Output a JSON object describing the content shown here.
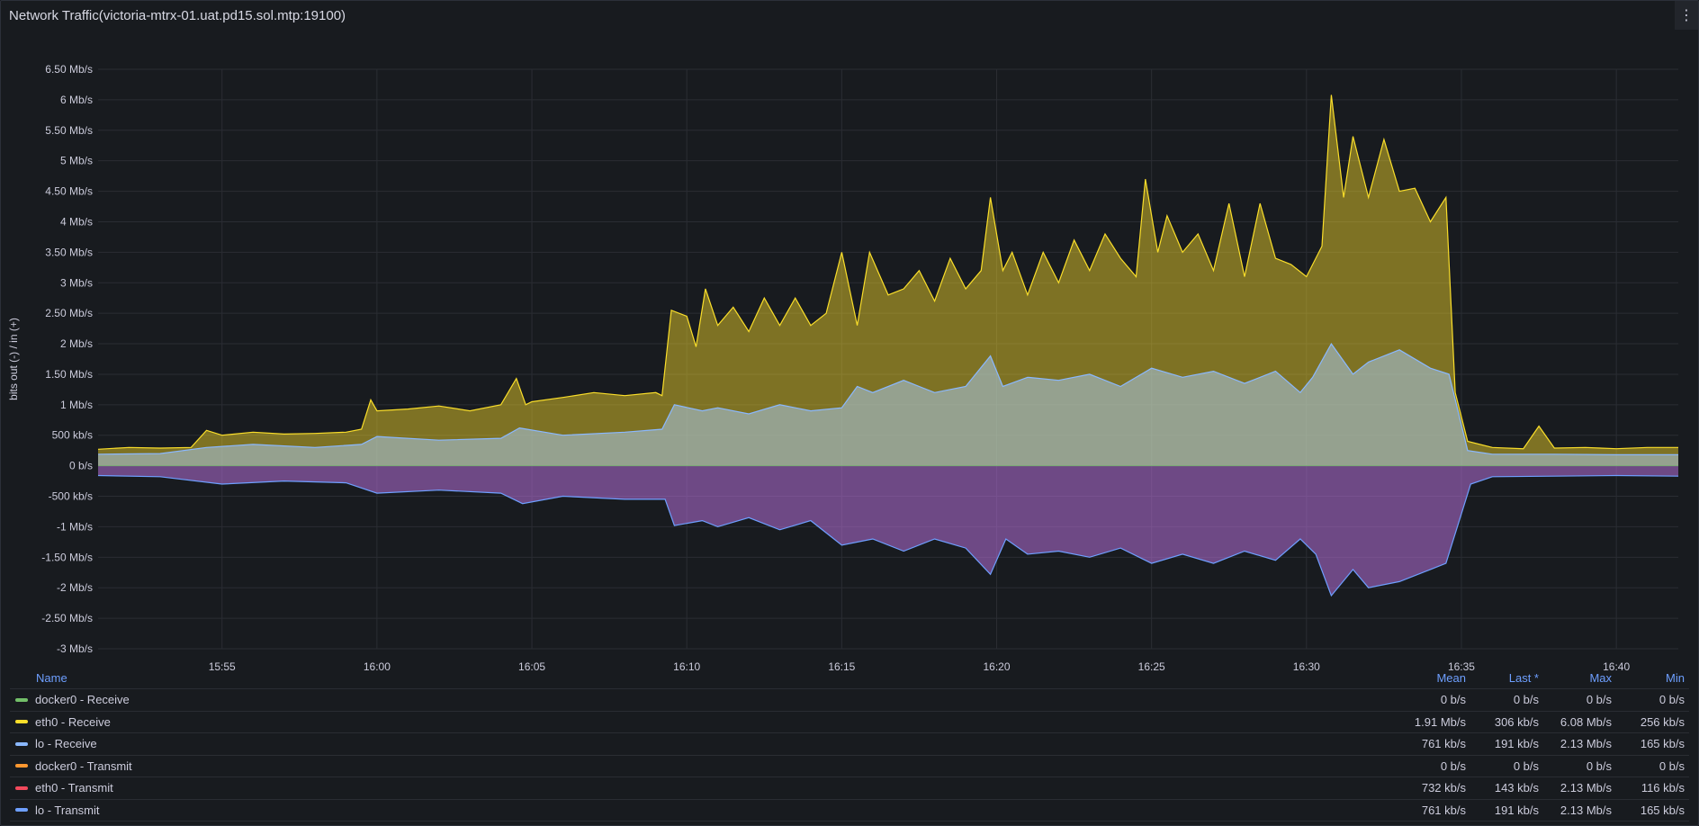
{
  "panel": {
    "title": "Network Traffic(victoria-mtrx-01.uat.pd15.sol.mtp:19100)",
    "menu_icon": "kebab-menu-icon"
  },
  "chart_data": {
    "type": "area",
    "ylabel": "bits out (-) / in (+)",
    "xlabel": "",
    "y_unit": "Mb/s",
    "ylim": [
      -3,
      6.5
    ],
    "yticks": [
      "6.50 Mb/s",
      "6 Mb/s",
      "5.50 Mb/s",
      "5 Mb/s",
      "4.50 Mb/s",
      "4 Mb/s",
      "3.50 Mb/s",
      "3 Mb/s",
      "2.50 Mb/s",
      "2 Mb/s",
      "1.50 Mb/s",
      "1 Mb/s",
      "500 kb/s",
      "0 b/s",
      "-500 kb/s",
      "-1 Mb/s",
      "-1.50 Mb/s",
      "-2 Mb/s",
      "-2.50 Mb/s",
      "-3 Mb/s"
    ],
    "ytick_values": [
      6.5,
      6,
      5.5,
      5,
      4.5,
      4,
      3.5,
      3,
      2.5,
      2,
      1.5,
      1,
      0.5,
      0,
      -0.5,
      -1,
      -1.5,
      -2,
      -2.5,
      -3
    ],
    "xticks": [
      "15:55",
      "16:00",
      "16:05",
      "16:10",
      "16:15",
      "16:20",
      "16:25",
      "16:30",
      "16:35",
      "16:40"
    ],
    "xtick_minutes": [
      55,
      60,
      65,
      70,
      75,
      80,
      85,
      90,
      95,
      100
    ],
    "x_range_minutes": [
      51,
      102
    ],
    "grid": true,
    "legend_position": "bottom",
    "series": [
      {
        "name": "eth0 - Receive",
        "color": "#fade2a",
        "points": [
          [
            51,
            0.27
          ],
          [
            52,
            0.3
          ],
          [
            53,
            0.29
          ],
          [
            54,
            0.3
          ],
          [
            54.5,
            0.58
          ],
          [
            55,
            0.5
          ],
          [
            56,
            0.55
          ],
          [
            57,
            0.52
          ],
          [
            58,
            0.53
          ],
          [
            59,
            0.55
          ],
          [
            59.5,
            0.6
          ],
          [
            59.8,
            1.08
          ],
          [
            60,
            0.9
          ],
          [
            61,
            0.93
          ],
          [
            62,
            0.98
          ],
          [
            63,
            0.9
          ],
          [
            64,
            1.0
          ],
          [
            64.5,
            1.43
          ],
          [
            64.8,
            1.0
          ],
          [
            65,
            1.05
          ],
          [
            66,
            1.12
          ],
          [
            67,
            1.2
          ],
          [
            68,
            1.15
          ],
          [
            69,
            1.2
          ],
          [
            69.2,
            1.15
          ],
          [
            69.5,
            2.55
          ],
          [
            70,
            2.45
          ],
          [
            70.3,
            1.95
          ],
          [
            70.6,
            2.9
          ],
          [
            71,
            2.3
          ],
          [
            71.5,
            2.6
          ],
          [
            72,
            2.2
          ],
          [
            72.5,
            2.75
          ],
          [
            73,
            2.3
          ],
          [
            73.5,
            2.75
          ],
          [
            74,
            2.3
          ],
          [
            74.5,
            2.5
          ],
          [
            75,
            3.5
          ],
          [
            75.5,
            2.3
          ],
          [
            75.9,
            3.5
          ],
          [
            76.5,
            2.8
          ],
          [
            77,
            2.9
          ],
          [
            77.5,
            3.2
          ],
          [
            78,
            2.7
          ],
          [
            78.5,
            3.4
          ],
          [
            79,
            2.9
          ],
          [
            79.5,
            3.2
          ],
          [
            79.8,
            4.4
          ],
          [
            80.2,
            3.2
          ],
          [
            80.5,
            3.5
          ],
          [
            81,
            2.8
          ],
          [
            81.5,
            3.5
          ],
          [
            82,
            3.0
          ],
          [
            82.5,
            3.7
          ],
          [
            83,
            3.2
          ],
          [
            83.5,
            3.8
          ],
          [
            84,
            3.4
          ],
          [
            84.5,
            3.1
          ],
          [
            84.8,
            4.7
          ],
          [
            85.2,
            3.5
          ],
          [
            85.5,
            4.1
          ],
          [
            86,
            3.5
          ],
          [
            86.5,
            3.8
          ],
          [
            87,
            3.2
          ],
          [
            87.5,
            4.3
          ],
          [
            88,
            3.1
          ],
          [
            88.5,
            4.3
          ],
          [
            89,
            3.4
          ],
          [
            89.5,
            3.3
          ],
          [
            90,
            3.1
          ],
          [
            90.5,
            3.6
          ],
          [
            90.8,
            6.08
          ],
          [
            91.2,
            4.4
          ],
          [
            91.5,
            5.4
          ],
          [
            92,
            4.4
          ],
          [
            92.5,
            5.35
          ],
          [
            93,
            4.5
          ],
          [
            93.5,
            4.55
          ],
          [
            94,
            4.0
          ],
          [
            94.5,
            4.4
          ],
          [
            94.8,
            1.2
          ],
          [
            95.2,
            0.4
          ],
          [
            96,
            0.3
          ],
          [
            97,
            0.28
          ],
          [
            97.5,
            0.65
          ],
          [
            98,
            0.29
          ],
          [
            99,
            0.3
          ],
          [
            100,
            0.28
          ],
          [
            101,
            0.3
          ],
          [
            102,
            0.3
          ]
        ]
      },
      {
        "name": "lo - Receive",
        "color": "#8ab8ff",
        "points": [
          [
            51,
            0.19
          ],
          [
            53,
            0.2
          ],
          [
            54.5,
            0.3
          ],
          [
            56,
            0.35
          ],
          [
            58,
            0.3
          ],
          [
            59.5,
            0.35
          ],
          [
            60,
            0.48
          ],
          [
            62,
            0.42
          ],
          [
            64,
            0.45
          ],
          [
            64.6,
            0.62
          ],
          [
            66,
            0.5
          ],
          [
            68,
            0.55
          ],
          [
            69.2,
            0.6
          ],
          [
            69.6,
            1.0
          ],
          [
            70.5,
            0.9
          ],
          [
            71,
            0.95
          ],
          [
            72,
            0.85
          ],
          [
            73,
            1.0
          ],
          [
            74,
            0.9
          ],
          [
            75,
            0.95
          ],
          [
            75.5,
            1.3
          ],
          [
            76,
            1.2
          ],
          [
            77,
            1.4
          ],
          [
            78,
            1.2
          ],
          [
            79,
            1.3
          ],
          [
            79.8,
            1.8
          ],
          [
            80.2,
            1.3
          ],
          [
            81,
            1.45
          ],
          [
            82,
            1.4
          ],
          [
            83,
            1.5
          ],
          [
            84,
            1.3
          ],
          [
            85,
            1.6
          ],
          [
            86,
            1.45
          ],
          [
            87,
            1.55
          ],
          [
            88,
            1.35
          ],
          [
            89,
            1.55
          ],
          [
            89.8,
            1.2
          ],
          [
            90.2,
            1.45
          ],
          [
            90.8,
            2.0
          ],
          [
            91.5,
            1.5
          ],
          [
            92,
            1.7
          ],
          [
            93,
            1.9
          ],
          [
            94,
            1.6
          ],
          [
            94.6,
            1.5
          ],
          [
            95.2,
            0.25
          ],
          [
            96,
            0.19
          ],
          [
            98,
            0.19
          ],
          [
            100,
            0.18
          ],
          [
            102,
            0.18
          ]
        ]
      },
      {
        "name": "lo - Transmit",
        "color": "#6e9fff",
        "points": [
          [
            51,
            -0.16
          ],
          [
            53,
            -0.18
          ],
          [
            55,
            -0.3
          ],
          [
            57,
            -0.25
          ],
          [
            59,
            -0.28
          ],
          [
            60,
            -0.45
          ],
          [
            62,
            -0.4
          ],
          [
            64,
            -0.45
          ],
          [
            64.7,
            -0.62
          ],
          [
            66,
            -0.5
          ],
          [
            68,
            -0.55
          ],
          [
            69.3,
            -0.55
          ],
          [
            69.6,
            -0.98
          ],
          [
            70.5,
            -0.9
          ],
          [
            71,
            -1.0
          ],
          [
            72,
            -0.85
          ],
          [
            73,
            -1.05
          ],
          [
            74,
            -0.9
          ],
          [
            75,
            -1.3
          ],
          [
            76,
            -1.2
          ],
          [
            77,
            -1.4
          ],
          [
            78,
            -1.2
          ],
          [
            79,
            -1.35
          ],
          [
            79.8,
            -1.78
          ],
          [
            80.3,
            -1.2
          ],
          [
            81,
            -1.45
          ],
          [
            82,
            -1.4
          ],
          [
            83,
            -1.5
          ],
          [
            84,
            -1.35
          ],
          [
            85,
            -1.6
          ],
          [
            86,
            -1.45
          ],
          [
            87,
            -1.6
          ],
          [
            88,
            -1.4
          ],
          [
            89,
            -1.55
          ],
          [
            89.8,
            -1.2
          ],
          [
            90.3,
            -1.45
          ],
          [
            90.8,
            -2.13
          ],
          [
            91.5,
            -1.7
          ],
          [
            92,
            -2.0
          ],
          [
            93,
            -1.9
          ],
          [
            94,
            -1.7
          ],
          [
            94.5,
            -1.6
          ],
          [
            95.3,
            -0.3
          ],
          [
            96,
            -0.18
          ],
          [
            98,
            -0.17
          ],
          [
            100,
            -0.16
          ],
          [
            102,
            -0.17
          ]
        ]
      }
    ]
  },
  "legend": {
    "headers": {
      "name": "Name",
      "mean": "Mean",
      "last": "Last *",
      "max": "Max",
      "min": "Min"
    },
    "rows": [
      {
        "name": "docker0 - Receive",
        "color": "#73bf69",
        "mean": "0 b/s",
        "last": "0 b/s",
        "max": "0 b/s",
        "min": "0 b/s"
      },
      {
        "name": "eth0 - Receive",
        "color": "#fade2a",
        "mean": "1.91 Mb/s",
        "last": "306 kb/s",
        "max": "6.08 Mb/s",
        "min": "256 kb/s"
      },
      {
        "name": "lo - Receive",
        "color": "#8ab8ff",
        "mean": "761 kb/s",
        "last": "191 kb/s",
        "max": "2.13 Mb/s",
        "min": "165 kb/s"
      },
      {
        "name": "docker0 - Transmit",
        "color": "#ff9830",
        "mean": "0 b/s",
        "last": "0 b/s",
        "max": "0 b/s",
        "min": "0 b/s"
      },
      {
        "name": "eth0 - Transmit",
        "color": "#f2495c",
        "mean": "732 kb/s",
        "last": "143 kb/s",
        "max": "2.13 Mb/s",
        "min": "116 kb/s"
      },
      {
        "name": "lo - Transmit",
        "color": "#6e9fff",
        "mean": "761 kb/s",
        "last": "191 kb/s",
        "max": "2.13 Mb/s",
        "min": "165 kb/s"
      }
    ]
  }
}
